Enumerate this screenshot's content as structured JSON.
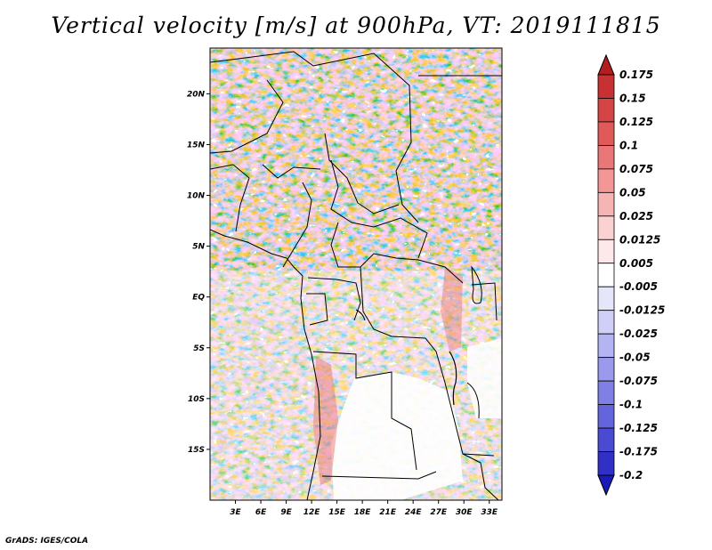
{
  "title": "Vertical velocity [m/s] at 900hPa, VT: 2019111815",
  "credit": "GrADS: IGES/COLA",
  "chart_data": {
    "type": "heatmap",
    "title": "Vertical velocity [m/s] at 900hPa, VT: 2019111815",
    "variable": "Vertical velocity",
    "units": "m/s",
    "level": "900hPa",
    "valid_time": "2019111815",
    "x_ticks": [
      "3E",
      "6E",
      "9E",
      "12E",
      "15E",
      "18E",
      "21E",
      "24E",
      "27E",
      "30E",
      "33E"
    ],
    "y_ticks": [
      "20N",
      "15N",
      "10N",
      "5N",
      "EQ",
      "5S",
      "10S",
      "15S"
    ],
    "colorbar": {
      "labels": [
        "0.175",
        "0.15",
        "0.125",
        "0.1",
        "0.075",
        "0.05",
        "0.025",
        "0.0125",
        "0.005",
        "-0.005",
        "-0.0125",
        "-0.025",
        "-0.05",
        "-0.075",
        "-0.1",
        "-0.125",
        "-0.175",
        "-0.2"
      ],
      "colors": [
        "#b21e1e",
        "#c73131",
        "#d64545",
        "#e05a5a",
        "#ea7777",
        "#f29696",
        "#f7b4b4",
        "#fbd1d1",
        "#fde9e9",
        "#ffffff",
        "#e6e6fb",
        "#cfcff7",
        "#b4b4f2",
        "#9a9aec",
        "#7f7fe4",
        "#6464dc",
        "#4a4ad2",
        "#3030c7",
        "#1a1ab8"
      ]
    },
    "extent": {
      "lon": [
        0,
        34.5
      ],
      "lat": [
        -20,
        24.5
      ]
    }
  }
}
